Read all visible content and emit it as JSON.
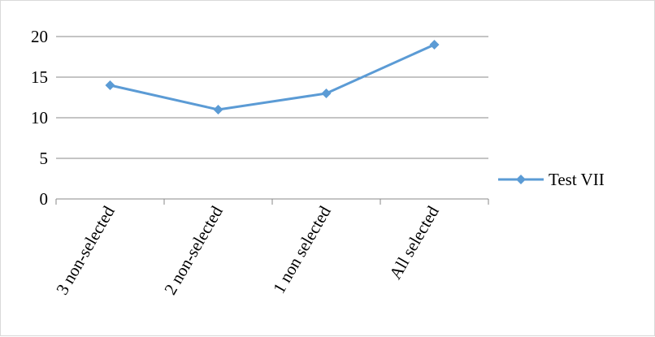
{
  "chart_data": {
    "type": "line",
    "title": "",
    "xlabel": "",
    "ylabel": "",
    "categories": [
      "3 non-selected",
      "2 non-selected",
      "1 non selected",
      "All selected"
    ],
    "series": [
      {
        "name": "Test VII",
        "values": [
          14,
          11,
          13,
          19
        ],
        "color": "#5b9bd5",
        "marker": "diamond"
      }
    ],
    "ylim": [
      0,
      20
    ],
    "yticks": [
      0,
      5,
      10,
      15,
      20
    ],
    "grid": "horizontal",
    "legend": "right"
  }
}
